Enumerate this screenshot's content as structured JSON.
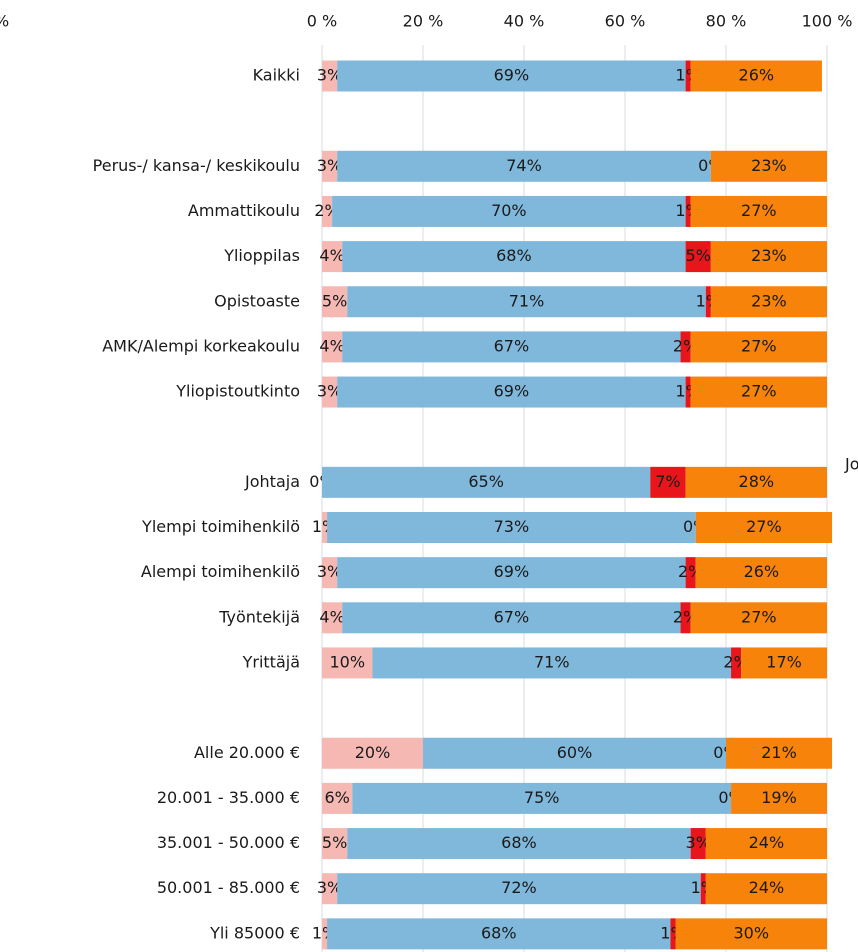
{
  "chart_data": {
    "type": "stacked-bar-horizontal",
    "categories": [
      "Kaikki",
      null,
      "Perus-/ kansa-/ keskikoulu",
      "Ammattikoulu",
      "Ylioppilas",
      "Opistoaste",
      "AMK/Alempi korkeakoulu",
      "Yliopistoutkinto",
      null,
      "Johtaja",
      "Ylempi toimihenkilö",
      "Alempi toimihenkilö",
      "Työntekijä",
      "Yrittäjä",
      null,
      "Alle 20.000 €",
      "20.001 - 35.000 €",
      "35.001 - 50.000 €",
      "50.001 - 85.000 €",
      "Yli 85000 €"
    ],
    "series": [
      {
        "color": "#f5b8b3",
        "values": [
          3,
          null,
          3,
          2,
          4,
          5,
          4,
          3,
          null,
          0,
          1,
          3,
          4,
          10,
          null,
          20,
          6,
          5,
          3,
          1
        ],
        "value_labels": [
          "3%",
          null,
          "3%",
          "2%",
          "4%",
          "5%",
          "4%",
          "3%",
          null,
          "0%",
          "1%",
          "3%",
          "4%",
          "10%",
          null,
          "20%",
          "6%",
          "5%",
          "3%",
          "1%"
        ]
      },
      {
        "color": "#80b8dc",
        "values": [
          69,
          null,
          74,
          70,
          68,
          71,
          67,
          69,
          null,
          65,
          73,
          69,
          67,
          71,
          null,
          60,
          75,
          68,
          72,
          68
        ],
        "value_labels": [
          "69%",
          null,
          "74%",
          "70%",
          "68%",
          "71%",
          "67%",
          "69%",
          null,
          "65%",
          "73%",
          "69%",
          "67%",
          "71%",
          null,
          "60%",
          "75%",
          "68%",
          "72%",
          "68%"
        ]
      },
      {
        "color": "#e8161b",
        "values": [
          1,
          null,
          0,
          1,
          5,
          1,
          2,
          1,
          null,
          7,
          0,
          2,
          2,
          2,
          null,
          0,
          0,
          3,
          1,
          1
        ],
        "value_labels": [
          "1%",
          null,
          "0%",
          "1%",
          "5%",
          "1%",
          "2%",
          "1%",
          null,
          "7%",
          "0%",
          "2%",
          "2%",
          "2%",
          null,
          "0%",
          "0%",
          "3%",
          "1%",
          "1%"
        ]
      },
      {
        "color": "#f8830b",
        "values": [
          26,
          null,
          23,
          27,
          23,
          23,
          27,
          27,
          null,
          28,
          27,
          26,
          27,
          17,
          null,
          21,
          19,
          24,
          24,
          30
        ],
        "value_labels": [
          "26%",
          null,
          "23%",
          "27%",
          "23%",
          "23%",
          "27%",
          "27%",
          null,
          "28%",
          "27%",
          "26%",
          "27%",
          "17%",
          null,
          "21%",
          "19%",
          "24%",
          "24%",
          "30%"
        ]
      }
    ],
    "xlim": [
      0,
      100
    ],
    "xticks": [
      {
        "value": 0,
        "label": "0 %"
      },
      {
        "value": 20,
        "label": "20 %"
      },
      {
        "value": 40,
        "label": "40 %"
      },
      {
        "value": 60,
        "label": "60 %"
      },
      {
        "value": 80,
        "label": "80 %"
      },
      {
        "value": 100,
        "label": "100 %"
      }
    ],
    "grid": true,
    "annotations": [
      "%",
      "Jo"
    ]
  }
}
